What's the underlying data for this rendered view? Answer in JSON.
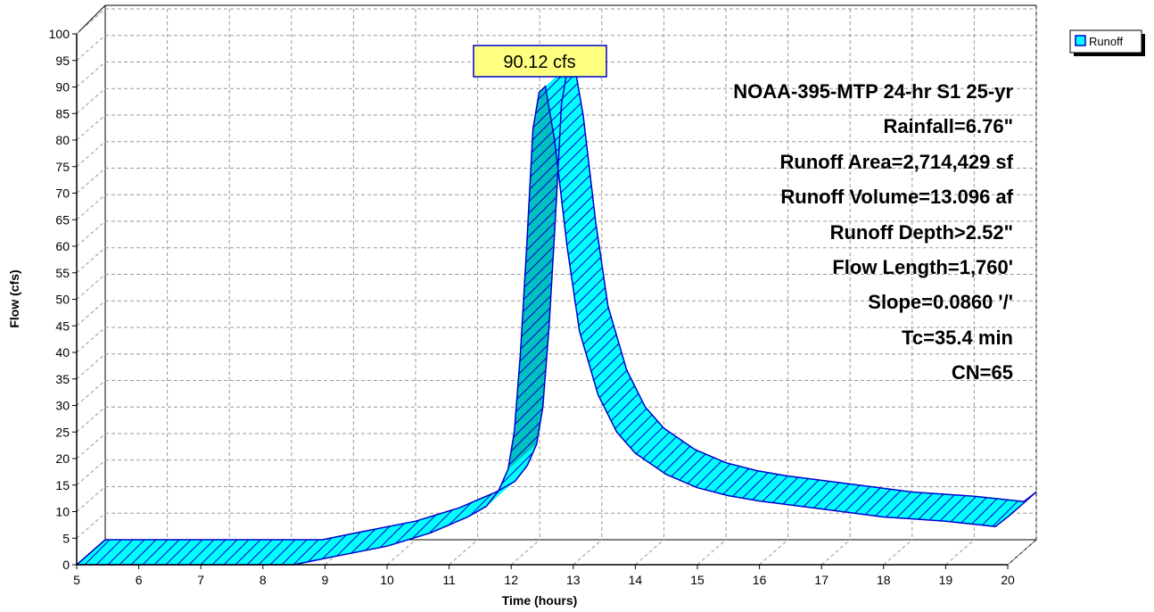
{
  "chart_data": {
    "type": "area",
    "xlabel": "Time  (hours)",
    "ylabel": "Flow  (cfs)",
    "xlim": [
      5,
      20
    ],
    "ylim": [
      0,
      100
    ],
    "x_ticks": [
      "5",
      "6",
      "7",
      "8",
      "9",
      "10",
      "11",
      "12",
      "13",
      "14",
      "15",
      "16",
      "17",
      "18",
      "19",
      "20"
    ],
    "y_ticks": [
      "0",
      "5",
      "10",
      "15",
      "20",
      "25",
      "30",
      "35",
      "40",
      "45",
      "50",
      "55",
      "60",
      "65",
      "70",
      "75",
      "80",
      "85",
      "90",
      "95",
      "100"
    ],
    "grid": true,
    "legend_position": "top-right",
    "series": [
      {
        "name": "Runoff",
        "color": "#00ffff",
        "x": [
          5,
          8.5,
          9,
          10,
          10.7,
          11,
          11.3,
          11.6,
          11.8,
          11.95,
          12.05,
          12.15,
          12.25,
          12.35,
          12.45,
          12.55,
          12.7,
          12.9,
          13.1,
          13.4,
          13.7,
          14,
          14.5,
          15,
          15.5,
          16,
          17,
          18,
          19,
          19.8,
          20
        ],
        "y": [
          0,
          0,
          1.2,
          3.5,
          6,
          7.5,
          9,
          11,
          14,
          18,
          25,
          40,
          60,
          82,
          89,
          90.12,
          80,
          60,
          44,
          32,
          25,
          21,
          17,
          14.5,
          13,
          12,
          10.5,
          9,
          8.2,
          7.2,
          9
        ]
      }
    ]
  },
  "legend": {
    "label": "Runoff"
  },
  "peak_label": "90.12 cfs",
  "annotations": [
    "NOAA-395-MTP 24-hr S1 25-yr",
    "Rainfall=6.76\"",
    "Runoff Area=2,714,429 sf",
    "Runoff Volume=13.096 af",
    "Runoff Depth>2.52\"",
    "Flow Length=1,760'",
    "Slope=0.0860 '/'",
    "Tc=35.4 min",
    "CN=65"
  ]
}
